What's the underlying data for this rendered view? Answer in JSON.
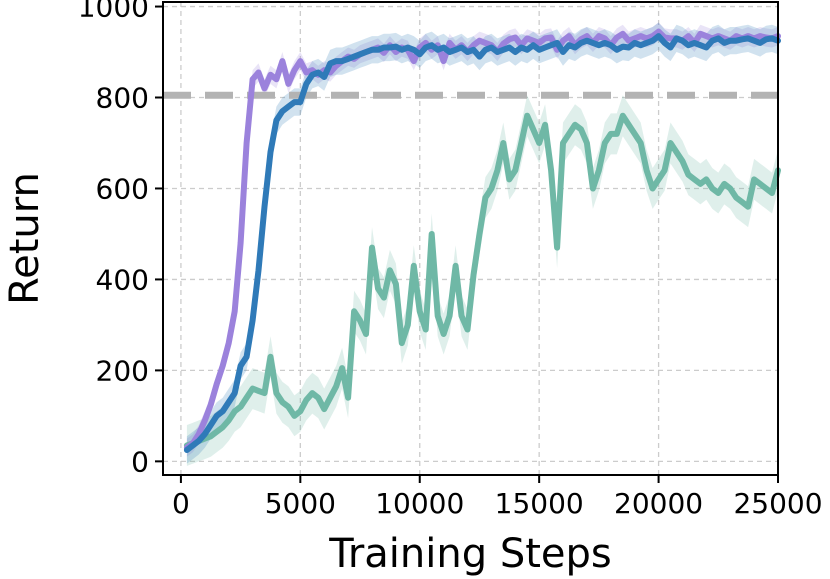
{
  "chart_data": {
    "type": "line",
    "title": "",
    "xlabel": "Training Steps",
    "ylabel": "Return",
    "xlim": [
      -750,
      25000
    ],
    "ylim": [
      -30,
      1010
    ],
    "xticks": [
      0,
      5000,
      10000,
      15000,
      20000,
      25000
    ],
    "xtick_labels": [
      "0",
      "5000",
      "10000",
      "15000",
      "20000",
      "25000"
    ],
    "yticks": [
      0,
      200,
      400,
      600,
      800,
      1000
    ],
    "ytick_labels": [
      "0",
      "200",
      "400",
      "600",
      "800",
      "1000"
    ],
    "grid": true,
    "reference_line": {
      "y": 805,
      "color": "#b3b3b3",
      "style": "dashed"
    },
    "series": [
      {
        "color": "#9b82dc",
        "band": 20,
        "x": [
          250,
          500,
          750,
          1000,
          1250,
          1500,
          1750,
          2000,
          2250,
          2500,
          2750,
          3000,
          3250,
          3500,
          3750,
          4000,
          4250,
          4500,
          4750,
          5000,
          5250,
          5500,
          5750,
          6000,
          6250,
          6500,
          6750,
          7000,
          7250,
          7500,
          7750,
          8000,
          8250,
          8500,
          8750,
          9000,
          9250,
          9500,
          9750,
          10000,
          10250,
          10500,
          10750,
          11000,
          11250,
          11500,
          11750,
          12000,
          12250,
          12500,
          12750,
          13000,
          13250,
          13500,
          13750,
          14000,
          14250,
          14500,
          14750,
          15000,
          15250,
          15500,
          15750,
          16000,
          16250,
          16500,
          16750,
          17000,
          17250,
          17500,
          17750,
          18000,
          18250,
          18500,
          18750,
          19000,
          19250,
          19500,
          19750,
          20000,
          20250,
          20500,
          20750,
          21000,
          21250,
          21500,
          21750,
          22000,
          22250,
          22500,
          22750,
          23000,
          23250,
          23500,
          23750,
          24000,
          24250,
          24500,
          24750,
          25000
        ],
        "values": [
          30,
          40,
          60,
          90,
          125,
          170,
          210,
          260,
          330,
          480,
          700,
          840,
          855,
          820,
          850,
          840,
          880,
          830,
          860,
          880,
          855,
          860,
          850,
          860,
          855,
          870,
          880,
          890,
          885,
          895,
          900,
          905,
          910,
          898,
          915,
          900,
          910,
          905,
          880,
          910,
          920,
          905,
          915,
          880,
          920,
          905,
          915,
          900,
          915,
          925,
          920,
          915,
          900,
          918,
          928,
          932,
          915,
          930,
          925,
          920,
          930,
          932,
          905,
          925,
          935,
          915,
          928,
          935,
          920,
          935,
          930,
          915,
          932,
          940,
          925,
          930,
          935,
          930,
          935,
          945,
          932,
          930,
          930,
          925,
          935,
          920,
          940,
          935,
          930,
          935,
          930,
          925,
          935,
          930,
          935,
          930,
          935,
          932,
          930,
          935
        ]
      },
      {
        "color": "#2f7ab8",
        "band": 30,
        "x": [
          250,
          500,
          750,
          1000,
          1250,
          1500,
          1750,
          2000,
          2250,
          2500,
          2750,
          3000,
          3250,
          3500,
          3750,
          4000,
          4250,
          4500,
          4750,
          5000,
          5250,
          5500,
          5750,
          6000,
          6250,
          6500,
          6750,
          7000,
          7250,
          7500,
          7750,
          8000,
          8250,
          8500,
          8750,
          9000,
          9250,
          9500,
          9750,
          10000,
          10250,
          10500,
          10750,
          11000,
          11250,
          11500,
          11750,
          12000,
          12250,
          12500,
          12750,
          13000,
          13250,
          13500,
          13750,
          14000,
          14250,
          14500,
          14750,
          15000,
          15250,
          15500,
          15750,
          16000,
          16250,
          16500,
          16750,
          17000,
          17250,
          17500,
          17750,
          18000,
          18250,
          18500,
          18750,
          19000,
          19250,
          19500,
          19750,
          20000,
          20250,
          20500,
          20750,
          21000,
          21250,
          21500,
          21750,
          22000,
          22250,
          22500,
          22750,
          23000,
          23250,
          23500,
          23750,
          24000,
          24250,
          24500,
          24750,
          25000
        ],
        "values": [
          25,
          35,
          45,
          60,
          80,
          100,
          110,
          130,
          150,
          210,
          230,
          310,
          420,
          560,
          680,
          750,
          770,
          780,
          790,
          790,
          830,
          850,
          855,
          845,
          875,
          880,
          880,
          885,
          890,
          895,
          900,
          905,
          905,
          910,
          910,
          912,
          905,
          910,
          905,
          895,
          910,
          915,
          905,
          910,
          900,
          905,
          910,
          900,
          905,
          890,
          905,
          910,
          900,
          905,
          910,
          900,
          910,
          905,
          915,
          905,
          910,
          915,
          920,
          900,
          915,
          910,
          920,
          925,
          920,
          915,
          920,
          915,
          905,
          912,
          910,
          920,
          915,
          920,
          925,
          935,
          920,
          910,
          930,
          925,
          915,
          920,
          915,
          910,
          925,
          930,
          920,
          925,
          925,
          928,
          930,
          925,
          920,
          928,
          930,
          925
        ]
      },
      {
        "color": "#6fb8a6",
        "band": 45,
        "x": [
          250,
          500,
          750,
          1000,
          1250,
          1500,
          1750,
          2000,
          2250,
          2500,
          2750,
          3000,
          3250,
          3500,
          3750,
          4000,
          4250,
          4500,
          4750,
          5000,
          5250,
          5500,
          5750,
          6000,
          6250,
          6500,
          6750,
          7000,
          7250,
          7500,
          7750,
          8000,
          8250,
          8500,
          8750,
          9000,
          9250,
          9500,
          9750,
          10000,
          10250,
          10500,
          10750,
          11000,
          11250,
          11500,
          11750,
          12000,
          12250,
          12500,
          12750,
          13000,
          13250,
          13500,
          13750,
          14000,
          14250,
          14500,
          14750,
          15000,
          15250,
          15500,
          15750,
          16000,
          16250,
          16500,
          16750,
          17000,
          17250,
          17500,
          17750,
          18000,
          18250,
          18500,
          18750,
          19000,
          19250,
          19500,
          19750,
          20000,
          20250,
          20500,
          20750,
          21000,
          21250,
          21500,
          21750,
          22000,
          22250,
          22500,
          22750,
          23000,
          23250,
          23500,
          23750,
          24000,
          24250,
          24500,
          24750,
          25000
        ],
        "values": [
          35,
          40,
          45,
          50,
          55,
          65,
          75,
          90,
          110,
          120,
          140,
          160,
          155,
          150,
          230,
          150,
          130,
          120,
          100,
          110,
          135,
          150,
          140,
          115,
          140,
          165,
          205,
          140,
          330,
          310,
          280,
          470,
          380,
          360,
          420,
          390,
          260,
          300,
          430,
          330,
          290,
          500,
          320,
          280,
          320,
          430,
          320,
          290,
          410,
          500,
          580,
          600,
          640,
          700,
          620,
          640,
          700,
          760,
          730,
          700,
          740,
          640,
          470,
          700,
          720,
          740,
          730,
          700,
          600,
          640,
          700,
          720,
          720,
          760,
          740,
          720,
          700,
          640,
          600,
          620,
          640,
          700,
          680,
          660,
          630,
          620,
          610,
          620,
          600,
          590,
          610,
          600,
          580,
          570,
          560,
          620,
          610,
          600,
          590,
          640
        ]
      }
    ]
  }
}
